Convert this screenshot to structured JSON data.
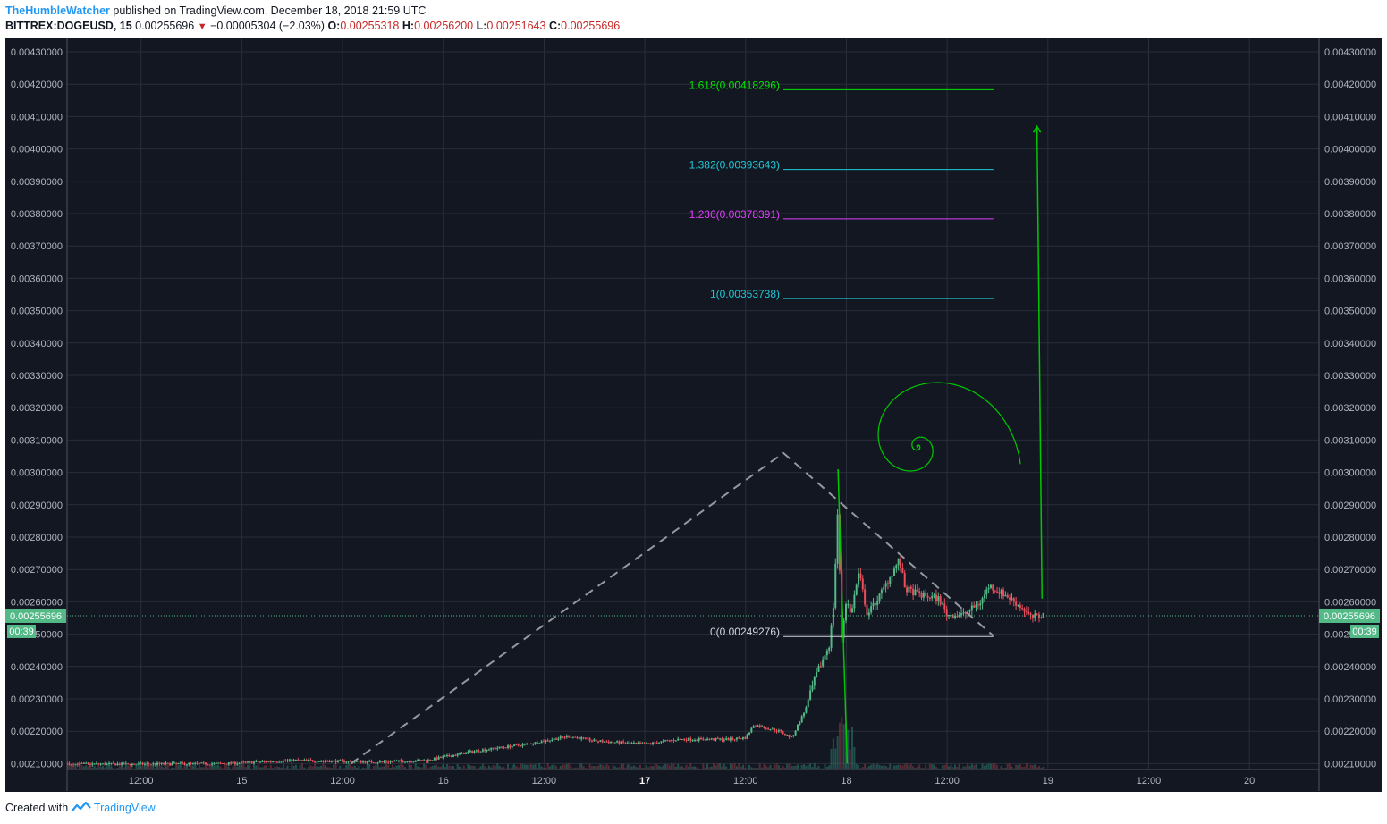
{
  "header": {
    "author": "TheHumbleWatcher",
    "published_text": "published on TradingView.com, December 18, 2018 21:59 UTC",
    "symbol": "BITTREX:DOGEUSD, 15",
    "last": "0.00255696",
    "change": "−0.00005304 (−2.03%)",
    "open_label": "O:",
    "open": "0.00255318",
    "high_label": "H:",
    "high": "0.00256200",
    "low_label": "L:",
    "low": "0.00251643",
    "close_label": "C:",
    "close": "0.00255696"
  },
  "footer": {
    "created_with": "Created with",
    "brand": "TradingView"
  },
  "colors": {
    "background": "#131722",
    "grid": "#2a2e39",
    "up": "#53b987",
    "down": "#eb4d5c",
    "spiral": "#00c800",
    "fib_1618": "#00e600",
    "fib_1382": "#1fc7d4",
    "fib_1236": "#e040fb",
    "fib_1": "#1fc7d4",
    "fib_0": "#d1d4dc",
    "price_tag": "#53b987",
    "pattern": "#9598a1"
  },
  "chart_data": {
    "type": "candlestick",
    "symbol": "BITTREX:DOGEUSD",
    "interval": "15",
    "ylim": [
      0.00207,
      0.00434
    ],
    "y_ticks": [
      "0.00430000",
      "0.00420000",
      "0.00410000",
      "0.00400000",
      "0.00390000",
      "0.00380000",
      "0.00370000",
      "0.00360000",
      "0.00350000",
      "0.00340000",
      "0.00330000",
      "0.00320000",
      "0.00310000",
      "0.00300000",
      "0.00290000",
      "0.00280000",
      "0.00270000",
      "0.00260000",
      "0.00250000",
      "0.00240000",
      "0.00230000",
      "0.00220000",
      "0.00210000"
    ],
    "x_ticks": [
      {
        "label": "12:00",
        "t": 12,
        "bold": false
      },
      {
        "label": "15",
        "t": 24,
        "bold": false
      },
      {
        "label": "12:00",
        "t": 36,
        "bold": false
      },
      {
        "label": "16",
        "t": 48,
        "bold": false
      },
      {
        "label": "12:00",
        "t": 60,
        "bold": false
      },
      {
        "label": "17",
        "t": 72,
        "bold": true
      },
      {
        "label": "12:00",
        "t": 84,
        "bold": false
      },
      {
        "label": "18",
        "t": 96,
        "bold": false
      },
      {
        "label": "12:00",
        "t": 108,
        "bold": false
      },
      {
        "label": "19",
        "t": 120,
        "bold": false
      },
      {
        "label": "12:00",
        "t": 132,
        "bold": false
      },
      {
        "label": "20",
        "t": 144,
        "bold": false
      }
    ],
    "price_path": [
      [
        -4.3,
        0.0021
      ],
      [
        10,
        0.002098
      ],
      [
        22,
        0.0021
      ],
      [
        30,
        0.00211
      ],
      [
        40,
        0.002105
      ],
      [
        46,
        0.00211
      ],
      [
        52,
        0.00214
      ],
      [
        58,
        0.00216
      ],
      [
        63,
        0.002185
      ],
      [
        66,
        0.00217
      ],
      [
        72,
        0.00216
      ],
      [
        76,
        0.002175
      ],
      [
        82,
        0.002175
      ],
      [
        84,
        0.00218
      ],
      [
        85,
        0.00222
      ],
      [
        88,
        0.0022
      ],
      [
        89.5,
        0.00218
      ],
      [
        91,
        0.00226
      ],
      [
        92.5,
        0.00238
      ],
      [
        94,
        0.00247
      ],
      [
        94.5,
        0.0026
      ],
      [
        95,
        0.0029
      ],
      [
        95.4,
        0.00248
      ],
      [
        96,
        0.00261
      ],
      [
        96.5,
        0.00256
      ],
      [
        97.5,
        0.00269
      ],
      [
        98.5,
        0.00256
      ],
      [
        100,
        0.00262
      ],
      [
        102.3,
        0.00273
      ],
      [
        103,
        0.00264
      ],
      [
        105,
        0.00262
      ],
      [
        107,
        0.00261
      ],
      [
        108,
        0.00256
      ],
      [
        110,
        0.00256
      ],
      [
        112,
        0.0026
      ],
      [
        113,
        0.00265
      ],
      [
        115,
        0.00262
      ],
      [
        117,
        0.00258
      ],
      [
        118,
        0.00255
      ],
      [
        119.5,
        0.00256
      ]
    ],
    "last_price": "0.00255696",
    "countdown": "00:39",
    "fib_extension": [
      {
        "ratio": "1.618",
        "price": 0.00418296,
        "label": "1.618(0.00418296)",
        "color": "#00e600"
      },
      {
        "ratio": "1.382",
        "price": 0.00393643,
        "label": "1.382(0.00393643)",
        "color": "#1fc7d4"
      },
      {
        "ratio": "1.236",
        "price": 0.00378391,
        "label": "1.236(0.00378391)",
        "color": "#e040fb"
      },
      {
        "ratio": "1",
        "price": 0.00353738,
        "label": "1(0.00353738)",
        "color": "#1fc7d4"
      },
      {
        "ratio": "0",
        "price": 0.00249276,
        "label": "0(0.00249276)",
        "color": "#d1d4dc"
      }
    ],
    "fib_span": [
      88.5,
      113.5
    ],
    "pattern_lines": [
      [
        [
          37,
          0.0021
        ],
        [
          88.5,
          0.00306
        ],
        [
          113.5,
          0.002495
        ]
      ]
    ],
    "spike_line": [
      [
        95,
        0.00301
      ],
      [
        96.1,
        0.0021
      ]
    ],
    "projection_arrow": [
      [
        119.3,
        0.00261
      ],
      [
        118.7,
        0.00407
      ]
    ],
    "spiral_center": [
      104.5,
      0.00308
    ],
    "spiral_start_angle_deg": 170,
    "spiral_turns": 1.5,
    "spiral_unit_px": 6.5,
    "spiral_visible_min_t": -7.6
  }
}
